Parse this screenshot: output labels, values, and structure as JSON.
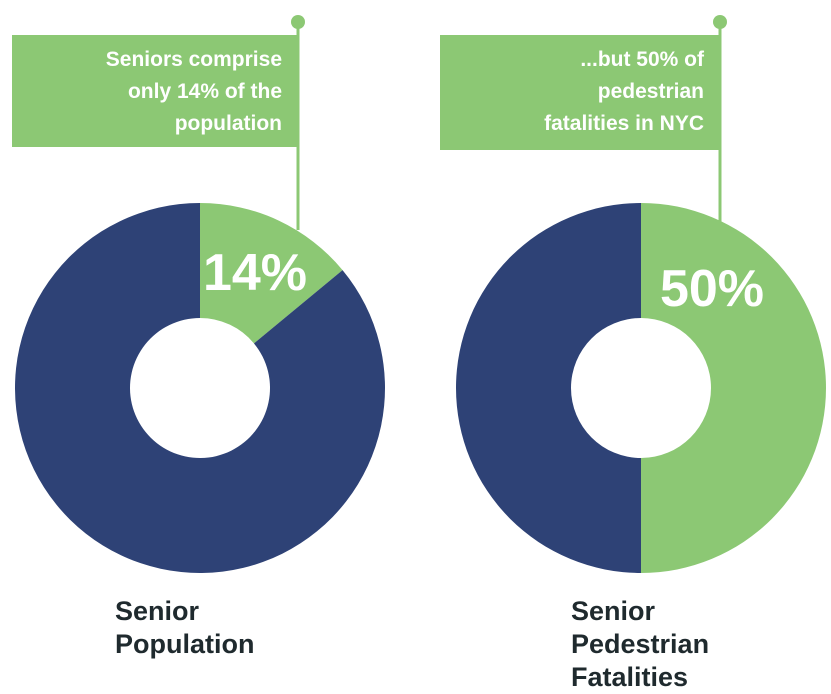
{
  "colors": {
    "senior": "#8cc874",
    "rest": "#2e4276",
    "caption": "#1f2a2e",
    "flag_text": "#ffffff"
  },
  "chart_data": [
    {
      "type": "pie",
      "variant": "donut",
      "series": [
        {
          "label": "Senior",
          "value": 14,
          "color": "#8cc874"
        },
        {
          "label": "",
          "value": 86,
          "color": "#2e4276"
        }
      ],
      "center_label": "14%",
      "callout": [
        "Seniors comprise",
        "only 14% of the",
        "population"
      ],
      "caption": [
        "Senior",
        "Population"
      ]
    },
    {
      "type": "pie",
      "variant": "donut",
      "series": [
        {
          "label": "Senior",
          "value": 50,
          "color": "#8cc874"
        },
        {
          "label": "",
          "value": 50,
          "color": "#2e4276"
        }
      ],
      "center_label": "50%",
      "callout": [
        "...but 50% of",
        "pedestrian",
        "fatalities in NYC"
      ],
      "caption": [
        "Senior",
        "Pedestrian",
        "Fatalities"
      ]
    }
  ]
}
